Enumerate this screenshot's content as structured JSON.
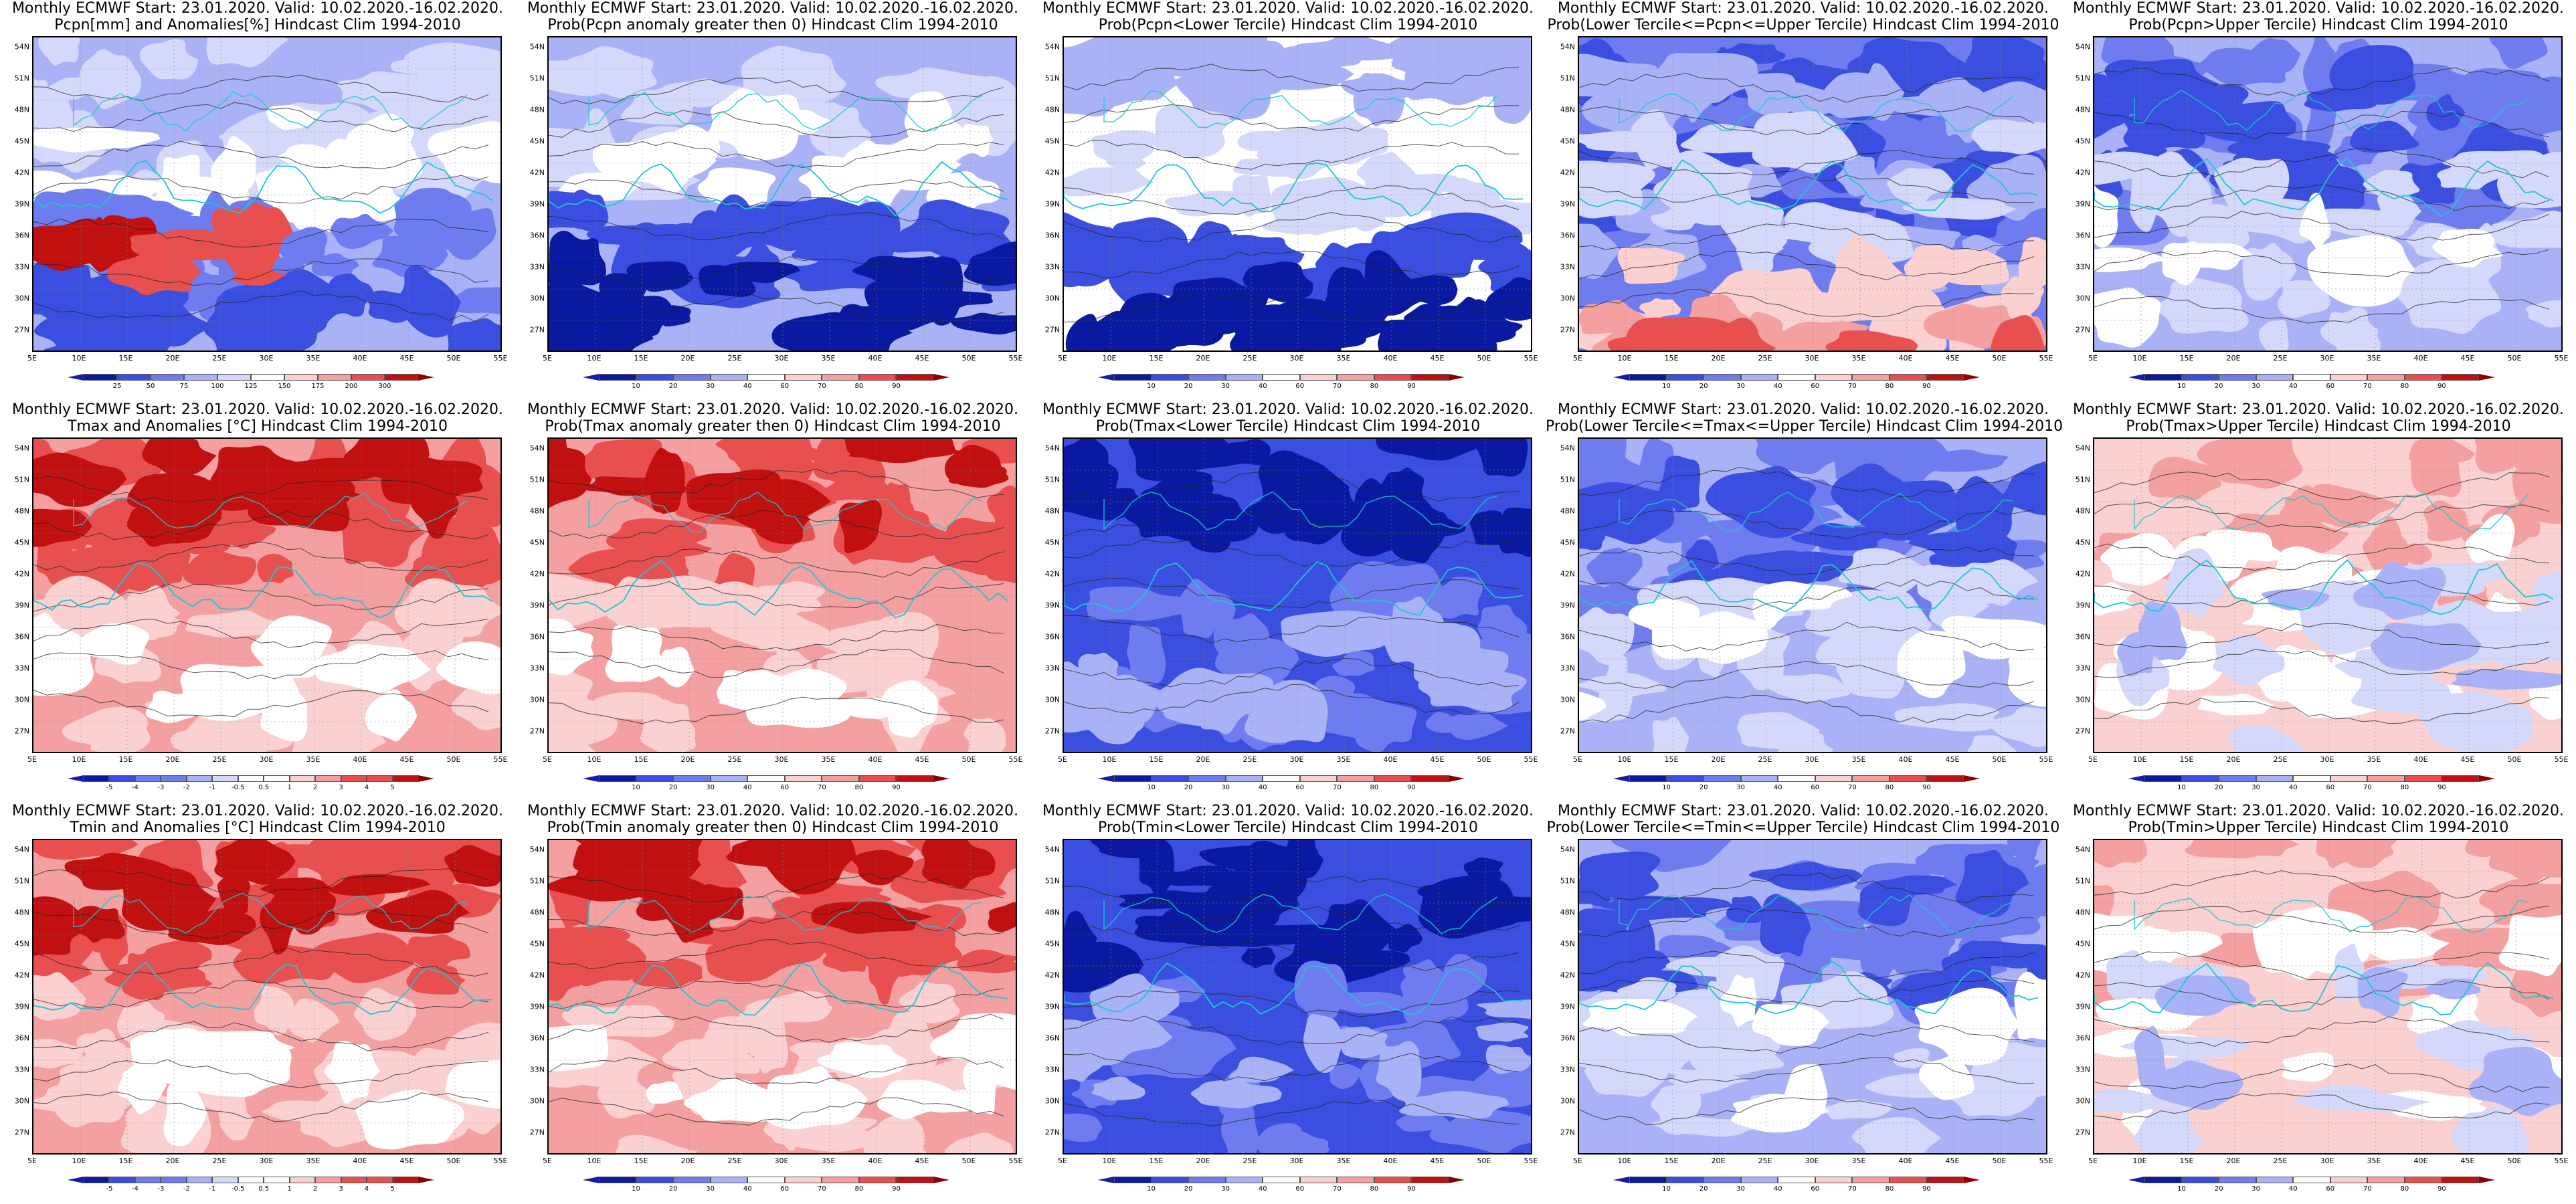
{
  "header": "Monthly ECMWF Start: 23.01.2020. Valid: 10.02.2020.-16.02.2020.",
  "lat_labels": [
    "54N",
    "51N",
    "48N",
    "45N",
    "42N",
    "39N",
    "36N",
    "33N",
    "30N",
    "27N"
  ],
  "lon_labels": [
    "5E",
    "10E",
    "15E",
    "20E",
    "25E",
    "30E",
    "35E",
    "40E",
    "45E",
    "50E",
    "55E"
  ],
  "colors": {
    "dark_blue": "#0a1aa0",
    "blue": "#3a4fe0",
    "mid_blue": "#6f7cf0",
    "light_blue": "#a9b2f6",
    "pale_blue": "#d4d8fb",
    "white": "#ffffff",
    "pale_red": "#fbd0d0",
    "light_red": "#f4a0a0",
    "red": "#e85050",
    "dark_red": "#c01010",
    "coast": "#19c8d2",
    "contour": "#222222"
  },
  "scales": {
    "prob": [
      "10",
      "20",
      "30",
      "40",
      "60",
      "70",
      "80",
      "90"
    ],
    "precip": [
      "25",
      "50",
      "75",
      "100",
      "125",
      "150",
      "175",
      "200",
      "300"
    ],
    "temp": [
      "-5",
      "-4",
      "-3",
      "-2",
      "-1",
      "-0.5",
      "0.5",
      "1",
      "2",
      "3",
      "4",
      "5"
    ]
  },
  "panels": [
    {
      "title": "Pcpn[mm] and Anomalies[%] Hindcast Clim 1994-2010",
      "scale": "precip",
      "theme": "pcpn_anom"
    },
    {
      "title": "Prob(Pcpn anomaly greater then 0) Hindcast Clim 1994-2010",
      "scale": "prob",
      "theme": "blue_south"
    },
    {
      "title": "Prob(Pcpn<Lower Tercile) Hindcast Clim 1994-2010",
      "scale": "prob",
      "theme": "blue_band_south"
    },
    {
      "title": "Prob(Lower Tercile<=Pcpn<=Upper Tercile) Hindcast Clim 1994-2010",
      "scale": "prob",
      "theme": "blue_mixed_red_south"
    },
    {
      "title": "Prob(Pcpn>Upper Tercile) Hindcast Clim 1994-2010",
      "scale": "prob",
      "theme": "blue_mixed"
    },
    {
      "title": "Tmax and Anomalies [°C] Hindcast Clim 1994-2010",
      "scale": "temp",
      "theme": "red_north"
    },
    {
      "title": "Prob(Tmax anomaly greater then 0) Hindcast Clim 1994-2010",
      "scale": "prob",
      "theme": "red_north"
    },
    {
      "title": "Prob(Tmax<Lower Tercile) Hindcast Clim 1994-2010",
      "scale": "prob",
      "theme": "blue_deep"
    },
    {
      "title": "Prob(Lower Tercile<=Tmax<=Upper Tercile) Hindcast Clim 1994-2010",
      "scale": "prob",
      "theme": "blue_mixed"
    },
    {
      "title": "Prob(Tmax>Upper Tercile) Hindcast Clim 1994-2010",
      "scale": "prob",
      "theme": "red_light"
    },
    {
      "title": "Tmin and Anomalies [°C] Hindcast Clim 1994-2010",
      "scale": "temp",
      "theme": "red_north"
    },
    {
      "title": "Prob(Tmin anomaly greater then 0) Hindcast Clim 1994-2010",
      "scale": "prob",
      "theme": "red_north"
    },
    {
      "title": "Prob(Tmin<Lower Tercile) Hindcast Clim 1994-2010",
      "scale": "prob",
      "theme": "blue_deep"
    },
    {
      "title": "Prob(Lower Tercile<=Tmin<=Upper Tercile) Hindcast Clim 1994-2010",
      "scale": "prob",
      "theme": "blue_mixed"
    },
    {
      "title": "Prob(Tmin>Upper Tercile) Hindcast Clim 1994-2010",
      "scale": "prob",
      "theme": "red_light"
    }
  ]
}
